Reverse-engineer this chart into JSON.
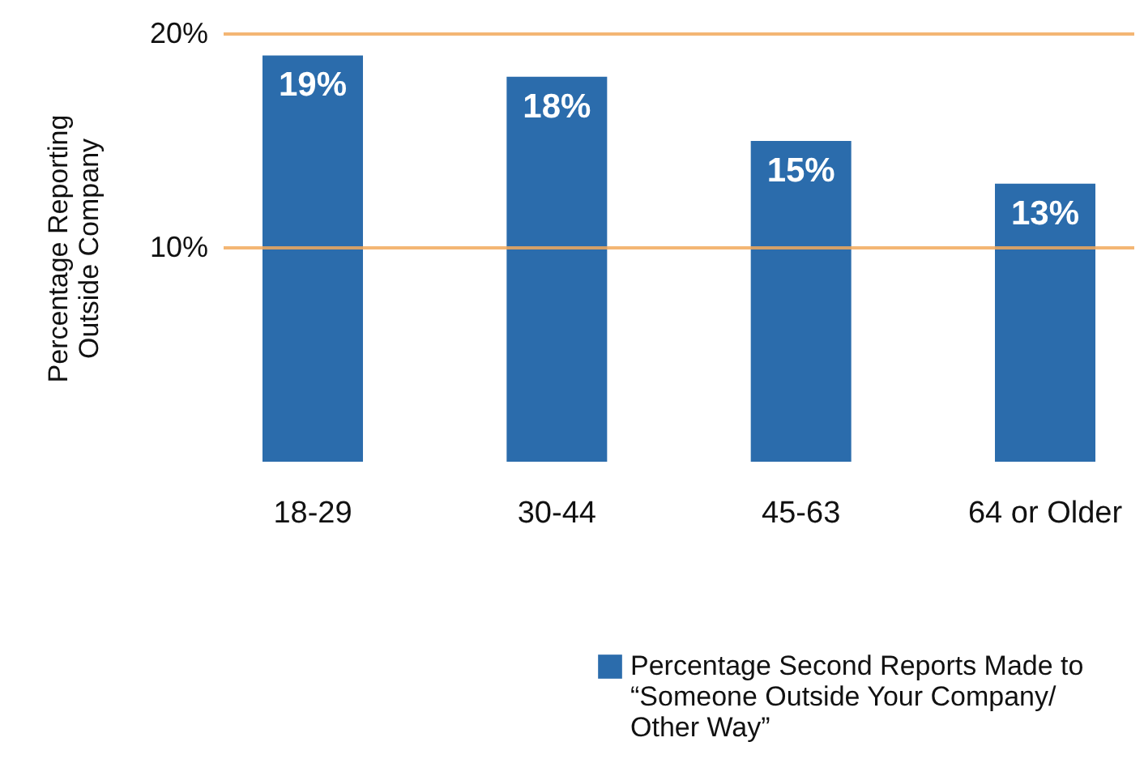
{
  "chart_data": {
    "type": "bar",
    "ylabel": "Percentage Reporting Outside Company",
    "categories": [
      "18-29",
      "30-44",
      "45-63",
      "64 or Older"
    ],
    "series": [
      {
        "name": "Percentage Second Reports Made to “Someone Outside Your Company/ Other Way”",
        "color": "#2b6cac",
        "values": [
          19,
          18,
          15,
          13
        ]
      }
    ],
    "value_labels": [
      "19%",
      "18%",
      "15%",
      "13%"
    ],
    "ylim": [
      0,
      20
    ],
    "yticks": [
      {
        "value": 10,
        "label": "10%"
      },
      {
        "value": 20,
        "label": "20%"
      }
    ],
    "ref_lines": [
      {
        "axis": "y",
        "value": 10,
        "color": "#f2a95c"
      },
      {
        "axis": "y",
        "value": 20,
        "color": "#f2a95c"
      }
    ],
    "legend": "bottom right"
  }
}
